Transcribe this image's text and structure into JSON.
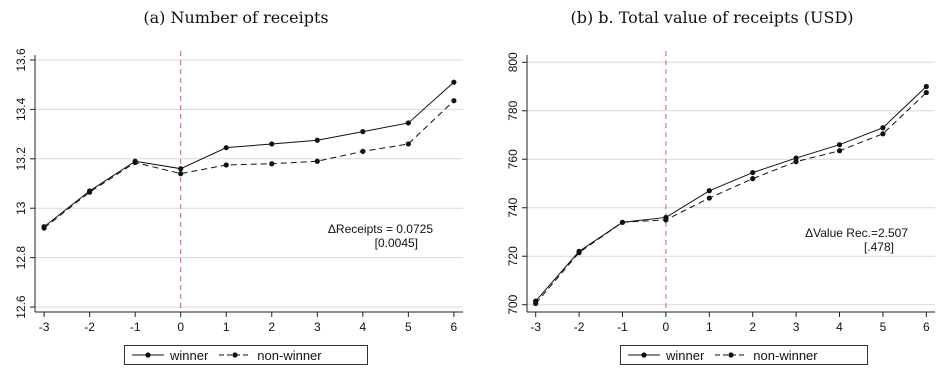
{
  "chart_data": [
    {
      "type": "line",
      "title": "(a) Number of receipts",
      "x": [
        -3,
        -2,
        -1,
        0,
        1,
        2,
        3,
        4,
        5,
        6
      ],
      "xticks": [
        "-3",
        "-2",
        "-1",
        "0",
        "1",
        "2",
        "3",
        "4",
        "5",
        "6"
      ],
      "ylim": [
        12.58,
        13.62
      ],
      "yticks": [
        "12.6",
        "12.8",
        "13",
        "13.2",
        "13.4",
        "13.6"
      ],
      "ytick_values": [
        12.6,
        12.8,
        13.0,
        13.2,
        13.4,
        13.6
      ],
      "vline_x": 0,
      "series": [
        {
          "name": "winner",
          "style": "solid",
          "values": [
            12.925,
            13.07,
            13.19,
            13.16,
            13.245,
            13.26,
            13.275,
            13.31,
            13.345,
            13.51
          ]
        },
        {
          "name": "non-winner",
          "style": "dashed",
          "values": [
            12.92,
            13.065,
            13.185,
            13.14,
            13.175,
            13.18,
            13.19,
            13.23,
            13.26,
            13.435
          ]
        }
      ],
      "annotation": {
        "line1": "ΔReceipts = 0.0725",
        "line2": "[0.0045]"
      },
      "legend": "bottom-center",
      "grid": true,
      "colors": {
        "line": "#111111",
        "vline": "#e05a5a",
        "grid": "#d9d9d9"
      }
    },
    {
      "type": "line",
      "title": "(b) b.  Total value of receipts (USD)",
      "x": [
        -3,
        -2,
        -1,
        0,
        1,
        2,
        3,
        4,
        5,
        6
      ],
      "xticks": [
        "-3",
        "-2",
        "-1",
        "0",
        "1",
        "2",
        "3",
        "4",
        "5",
        "6"
      ],
      "ylim": [
        697,
        803
      ],
      "yticks": [
        "700",
        "720",
        "740",
        "760",
        "780",
        "800"
      ],
      "ytick_values": [
        700,
        720,
        740,
        760,
        780,
        800
      ],
      "vline_x": 0,
      "series": [
        {
          "name": "winner",
          "style": "solid",
          "values": [
            701.5,
            722.0,
            734.0,
            736.0,
            747.0,
            754.5,
            760.5,
            766.0,
            773.0,
            790.0
          ]
        },
        {
          "name": "non-winner",
          "style": "dashed",
          "values": [
            700.5,
            721.5,
            734.0,
            735.0,
            744.0,
            752.0,
            759.0,
            763.5,
            770.5,
            787.5
          ]
        }
      ],
      "annotation": {
        "line1": "ΔValue Rec.=2.507",
        "line2": "[.478]"
      },
      "legend": "bottom-center",
      "grid": true,
      "colors": {
        "line": "#111111",
        "vline": "#e05a5a",
        "grid": "#d9d9d9"
      }
    }
  ]
}
